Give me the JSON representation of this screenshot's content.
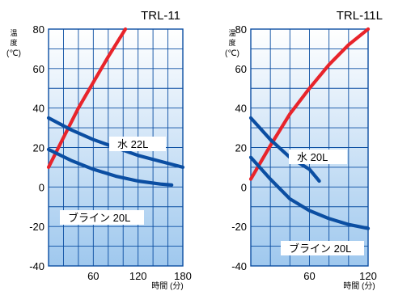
{
  "chart_data": [
    {
      "type": "line",
      "title": "TRL-11",
      "ylabel_chars": [
        "温",
        "度"
      ],
      "yunit": "(℃)",
      "xlabel": "時間 (分)",
      "xlim": [
        0,
        180
      ],
      "ylim": [
        -40,
        80
      ],
      "xticks": [
        "60",
        "120",
        "180"
      ],
      "yticks": [
        "80",
        "60",
        "40",
        "20",
        "0",
        "-20",
        "-40"
      ],
      "grid": true,
      "annotations": [
        "水 22L",
        "ブライン 20L"
      ],
      "series": [
        {
          "name": "",
          "color": "#e8242b",
          "x": [
            0,
            20,
            40,
            60,
            80,
            103
          ],
          "y": [
            10,
            25,
            40,
            53,
            66,
            80
          ]
        },
        {
          "name": "水 22L",
          "color": "#0b4ea2",
          "x": [
            0,
            30,
            60,
            90,
            120,
            150,
            180
          ],
          "y": [
            35,
            29,
            24,
            20,
            16,
            13,
            10
          ]
        },
        {
          "name": "ブライン 20L",
          "color": "#0b4ea2",
          "x": [
            0,
            30,
            60,
            90,
            120,
            150,
            165
          ],
          "y": [
            19,
            13.5,
            9,
            5.5,
            3,
            1.5,
            1
          ]
        }
      ]
    },
    {
      "type": "line",
      "title": "TRL-11L",
      "ylabel_chars": [
        "温",
        "度"
      ],
      "yunit": "(℃)",
      "xlabel": "時間 (分)",
      "xlim": [
        0,
        120
      ],
      "ylim": [
        -40,
        80
      ],
      "xticks": [
        "60",
        "120"
      ],
      "yticks": [
        "80",
        "60",
        "40",
        "20",
        "0",
        "-20",
        "-40"
      ],
      "grid": true,
      "annotations": [
        "水 20L",
        "ブライン 20L"
      ],
      "series": [
        {
          "name": "",
          "color": "#e8242b",
          "x": [
            0,
            20,
            40,
            60,
            80,
            100,
            120
          ],
          "y": [
            4,
            21,
            37,
            50,
            62,
            72,
            80
          ]
        },
        {
          "name": "水 20L",
          "color": "#0b4ea2",
          "x": [
            0,
            20,
            40,
            60,
            70
          ],
          "y": [
            35,
            24,
            15,
            9,
            3
          ]
        },
        {
          "name": "ブライン 20L",
          "color": "#0b4ea2",
          "x": [
            0,
            20,
            40,
            60,
            80,
            100,
            120
          ],
          "y": [
            15,
            4,
            -6,
            -12,
            -16,
            -19,
            -21
          ]
        }
      ]
    }
  ]
}
